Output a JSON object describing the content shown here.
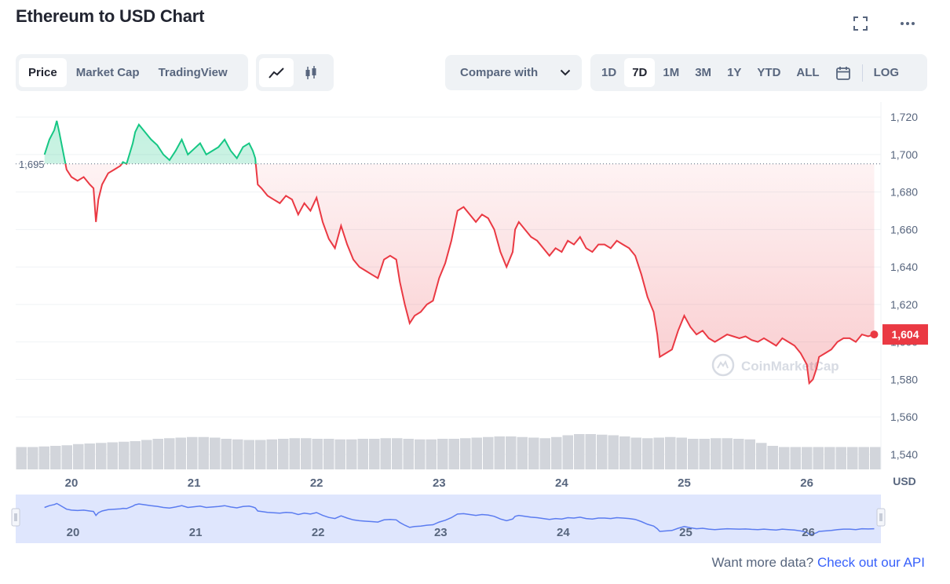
{
  "header": {
    "title": "Ethereum to USD Chart",
    "fullscreen_icon": "expand-icon",
    "more_icon": "more-horizontal-icon"
  },
  "tabs": [
    {
      "label": "Price",
      "active": true
    },
    {
      "label": "Market Cap",
      "active": false
    },
    {
      "label": "TradingView",
      "active": false
    }
  ],
  "chart_type_buttons": [
    {
      "icon": "line-chart-icon",
      "active": true
    },
    {
      "icon": "candlestick-icon",
      "active": false
    }
  ],
  "compare": {
    "label": "Compare with",
    "icon": "chevron-down-icon"
  },
  "timeframes": [
    {
      "label": "1D",
      "active": false
    },
    {
      "label": "7D",
      "active": true
    },
    {
      "label": "1M",
      "active": false
    },
    {
      "label": "3M",
      "active": false
    },
    {
      "label": "1Y",
      "active": false
    },
    {
      "label": "YTD",
      "active": false
    },
    {
      "label": "ALL",
      "active": false
    }
  ],
  "calendar_icon": "calendar-icon",
  "log_label": "LOG",
  "colors": {
    "up": "#16c784",
    "down": "#ea3943",
    "text_muted": "#58667e",
    "link": "#3861fb",
    "volume": "#c9ccd2",
    "navigator": "#dfe6fd"
  },
  "chart_data": {
    "type": "line",
    "title": "",
    "x_labels": [
      "20",
      "21",
      "22",
      "23",
      "24",
      "25",
      "26"
    ],
    "y_ticks": [
      "1,720",
      "1,700",
      "1,680",
      "1,660",
      "1,640",
      "1,620",
      "1,600",
      "1,580",
      "1,560",
      "1,540"
    ],
    "ylim": [
      1532,
      1728
    ],
    "y_unit": "USD",
    "reference_price": 1695,
    "reference_label": "1,695",
    "current_price": 1604,
    "current_label": "1,604",
    "x_range": [
      19.6,
      26.55
    ],
    "series": [
      {
        "x": [
          19.78,
          19.82,
          19.86,
          19.88,
          19.9,
          19.93,
          19.96,
          20.0,
          20.05,
          20.1,
          20.15,
          20.18,
          20.2,
          20.22,
          20.25,
          20.3,
          20.35,
          20.4,
          20.42,
          20.45,
          20.5,
          20.52,
          20.55,
          20.6,
          20.65,
          20.7,
          20.75,
          20.8,
          20.85,
          20.9,
          20.95,
          21.0,
          21.05,
          21.1,
          21.15,
          21.2,
          21.25,
          21.3,
          21.35,
          21.4,
          21.45,
          21.48,
          21.5,
          21.52,
          21.55,
          21.6,
          21.65,
          21.7,
          21.75,
          21.8,
          21.85,
          21.9,
          21.95,
          22.0,
          22.05,
          22.1,
          22.15,
          22.2,
          22.25,
          22.3,
          22.35,
          22.4,
          22.45,
          22.5,
          22.55,
          22.6,
          22.65,
          22.68,
          22.72,
          22.76,
          22.8,
          22.85,
          22.9,
          22.95,
          23.0,
          23.05,
          23.1,
          23.15,
          23.2,
          23.25,
          23.3,
          23.35,
          23.4,
          23.45,
          23.5,
          23.55,
          23.6,
          23.62,
          23.65,
          23.7,
          23.75,
          23.8,
          23.85,
          23.9,
          23.95,
          24.0,
          24.05,
          24.1,
          24.15,
          24.2,
          24.25,
          24.3,
          24.35,
          24.4,
          24.45,
          24.5,
          24.55,
          24.6,
          24.65,
          24.7,
          24.75,
          24.78,
          24.8,
          24.85,
          24.9,
          24.95,
          25.0,
          25.05,
          25.1,
          25.15,
          25.2,
          25.25,
          25.3,
          25.35,
          25.4,
          25.45,
          25.5,
          25.55,
          25.6,
          25.65,
          25.7,
          25.75,
          25.8,
          25.85,
          25.9,
          25.95,
          26.0,
          26.02,
          26.05,
          26.08,
          26.1,
          26.15,
          26.2,
          26.25,
          26.3,
          26.35,
          26.4,
          26.45,
          26.5,
          26.55
        ],
        "y": [
          1700,
          1708,
          1713,
          1718,
          1712,
          1702,
          1692,
          1688,
          1686,
          1688,
          1684,
          1682,
          1664,
          1676,
          1684,
          1690,
          1692,
          1694,
          1696,
          1695,
          1706,
          1712,
          1716,
          1712,
          1708,
          1705,
          1700,
          1697,
          1702,
          1708,
          1700,
          1703,
          1706,
          1700,
          1702,
          1704,
          1708,
          1702,
          1698,
          1704,
          1706,
          1702,
          1698,
          1684,
          1682,
          1678,
          1676,
          1674,
          1678,
          1676,
          1668,
          1674,
          1670,
          1677,
          1664,
          1655,
          1650,
          1662,
          1652,
          1644,
          1640,
          1638,
          1636,
          1634,
          1644,
          1646,
          1644,
          1632,
          1620,
          1610,
          1614,
          1616,
          1620,
          1622,
          1634,
          1642,
          1654,
          1670,
          1672,
          1668,
          1664,
          1668,
          1666,
          1660,
          1648,
          1640,
          1648,
          1660,
          1664,
          1660,
          1656,
          1654,
          1650,
          1646,
          1650,
          1648,
          1654,
          1652,
          1656,
          1650,
          1648,
          1652,
          1652,
          1650,
          1654,
          1652,
          1650,
          1646,
          1636,
          1624,
          1616,
          1604,
          1592,
          1594,
          1596,
          1606,
          1614,
          1608,
          1604,
          1606,
          1602,
          1600,
          1602,
          1604,
          1603,
          1602,
          1603,
          1601,
          1600,
          1602,
          1600,
          1598,
          1602,
          1600,
          1598,
          1594,
          1588,
          1578,
          1580,
          1586,
          1592,
          1594,
          1596,
          1600,
          1602,
          1602,
          1600,
          1604,
          1603,
          1604
        ]
      }
    ],
    "volume": [
      38,
      38,
      39,
      40,
      41,
      43,
      44,
      45,
      46,
      47,
      48,
      50,
      52,
      53,
      54,
      55,
      55,
      54,
      52,
      51,
      50,
      50,
      51,
      52,
      53,
      53,
      52,
      52,
      51,
      51,
      52,
      52,
      53,
      53,
      52,
      51,
      51,
      52,
      52,
      53,
      54,
      55,
      56,
      56,
      55,
      54,
      53,
      55,
      58,
      60,
      60,
      59,
      58,
      56,
      54,
      53,
      54,
      55,
      54,
      52,
      52,
      53,
      53,
      52,
      51,
      45,
      40,
      38,
      38,
      38,
      38,
      38,
      38,
      38,
      38,
      38
    ],
    "watermark": "CoinMarketCap",
    "navigator_labels": [
      "20",
      "21",
      "22",
      "23",
      "24",
      "25",
      "26"
    ]
  },
  "footer": {
    "text": "Want more data?",
    "link": "Check out our API"
  }
}
